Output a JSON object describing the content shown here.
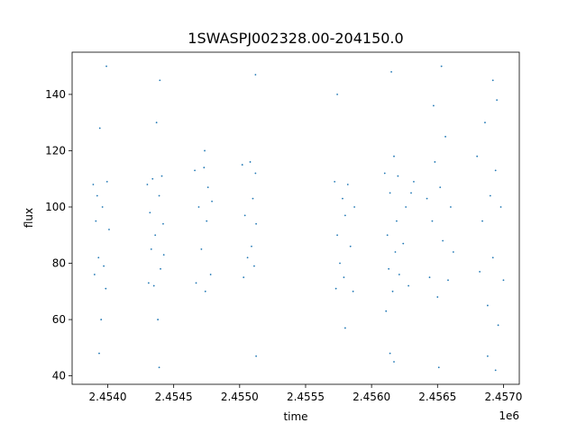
{
  "chart_data": {
    "type": "scatter",
    "title": "1SWASPJ002328.00-204150.0",
    "xlabel": "time",
    "ylabel": "flux",
    "x_offset_label": "1e6",
    "xlim": [
      2453730,
      2457120
    ],
    "ylim": [
      37,
      155
    ],
    "grid": false,
    "marker_color": "#1f77b4",
    "x_ticks": [
      {
        "value": 2454000,
        "label": "2.4540"
      },
      {
        "value": 2454500,
        "label": "2.4545"
      },
      {
        "value": 2455000,
        "label": "2.4550"
      },
      {
        "value": 2455500,
        "label": "2.4555"
      },
      {
        "value": 2456000,
        "label": "2.4560"
      },
      {
        "value": 2456500,
        "label": "2.4565"
      },
      {
        "value": 2457000,
        "label": "2.4570"
      }
    ],
    "y_ticks": [
      {
        "value": 40,
        "label": "40"
      },
      {
        "value": 60,
        "label": "60"
      },
      {
        "value": 80,
        "label": "80"
      },
      {
        "value": 100,
        "label": "100"
      },
      {
        "value": 120,
        "label": "120"
      },
      {
        "value": 140,
        "label": "140"
      }
    ],
    "series": [
      {
        "values": [
          [
            2453890,
            108
          ],
          [
            2453900,
            76
          ],
          [
            2453910,
            95
          ],
          [
            2453920,
            104
          ],
          [
            2453930,
            82
          ],
          [
            2453940,
            128
          ],
          [
            2453950,
            60
          ],
          [
            2453960,
            100
          ],
          [
            2453970,
            79
          ],
          [
            2453985,
            71
          ],
          [
            2453995,
            109
          ],
          [
            2454010,
            92
          ],
          [
            2453935,
            48
          ],
          [
            2453990,
            150
          ],
          [
            2454300,
            108
          ],
          [
            2454310,
            73
          ],
          [
            2454320,
            98
          ],
          [
            2454330,
            85
          ],
          [
            2454340,
            110
          ],
          [
            2454350,
            72
          ],
          [
            2454360,
            90
          ],
          [
            2454370,
            130
          ],
          [
            2454380,
            60
          ],
          [
            2454390,
            104
          ],
          [
            2454400,
            78
          ],
          [
            2454410,
            111
          ],
          [
            2454420,
            94
          ],
          [
            2454425,
            83
          ],
          [
            2454395,
            145
          ],
          [
            2454390,
            43
          ],
          [
            2454660,
            113
          ],
          [
            2454670,
            73
          ],
          [
            2454690,
            100
          ],
          [
            2454710,
            85
          ],
          [
            2454730,
            114
          ],
          [
            2454740,
            70
          ],
          [
            2454750,
            95
          ],
          [
            2454760,
            107
          ],
          [
            2454780,
            76
          ],
          [
            2454790,
            102
          ],
          [
            2454735,
            120
          ],
          [
            2455020,
            115
          ],
          [
            2455030,
            75
          ],
          [
            2455040,
            97
          ],
          [
            2455060,
            82
          ],
          [
            2455080,
            116
          ],
          [
            2455090,
            86
          ],
          [
            2455100,
            103
          ],
          [
            2455110,
            79
          ],
          [
            2455120,
            112
          ],
          [
            2455125,
            94
          ],
          [
            2455120,
            147
          ],
          [
            2455125,
            47
          ],
          [
            2455720,
            109
          ],
          [
            2455730,
            71
          ],
          [
            2455740,
            90
          ],
          [
            2455760,
            80
          ],
          [
            2455780,
            103
          ],
          [
            2455790,
            75
          ],
          [
            2455800,
            97
          ],
          [
            2455820,
            108
          ],
          [
            2455840,
            86
          ],
          [
            2455860,
            70
          ],
          [
            2455870,
            100
          ],
          [
            2455740,
            140
          ],
          [
            2455800,
            57
          ],
          [
            2456100,
            112
          ],
          [
            2456110,
            63
          ],
          [
            2456120,
            90
          ],
          [
            2456130,
            78
          ],
          [
            2456140,
            105
          ],
          [
            2456150,
            148
          ],
          [
            2456160,
            70
          ],
          [
            2456170,
            118
          ],
          [
            2456180,
            84
          ],
          [
            2456190,
            95
          ],
          [
            2456200,
            111
          ],
          [
            2456210,
            76
          ],
          [
            2456240,
            87
          ],
          [
            2456260,
            100
          ],
          [
            2456280,
            72
          ],
          [
            2456300,
            105
          ],
          [
            2456320,
            109
          ],
          [
            2456170,
            45
          ],
          [
            2456140,
            48
          ],
          [
            2456420,
            103
          ],
          [
            2456440,
            75
          ],
          [
            2456460,
            95
          ],
          [
            2456480,
            116
          ],
          [
            2456500,
            68
          ],
          [
            2456520,
            107
          ],
          [
            2456540,
            88
          ],
          [
            2456560,
            125
          ],
          [
            2456580,
            74
          ],
          [
            2456600,
            100
          ],
          [
            2456620,
            84
          ],
          [
            2456530,
            150
          ],
          [
            2456510,
            43
          ],
          [
            2456470,
            136
          ],
          [
            2456800,
            118
          ],
          [
            2456820,
            77
          ],
          [
            2456840,
            95
          ],
          [
            2456860,
            130
          ],
          [
            2456880,
            65
          ],
          [
            2456900,
            104
          ],
          [
            2456920,
            82
          ],
          [
            2456940,
            113
          ],
          [
            2456960,
            58
          ],
          [
            2456980,
            100
          ],
          [
            2457000,
            74
          ],
          [
            2456920,
            145
          ],
          [
            2456940,
            42
          ],
          [
            2456880,
            47
          ],
          [
            2456950,
            138
          ]
        ]
      }
    ]
  }
}
